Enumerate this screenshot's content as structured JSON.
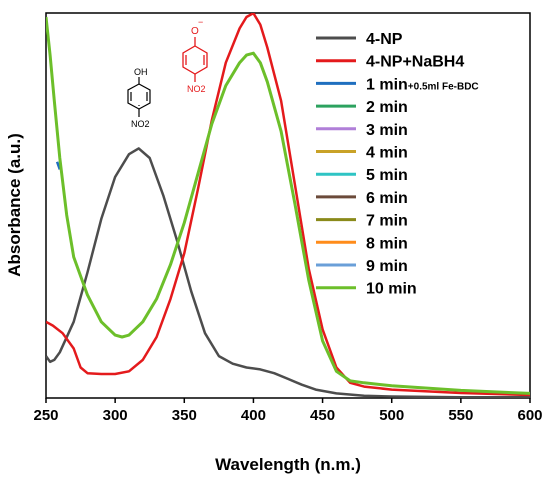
{
  "chart_data": {
    "type": "line",
    "xlabel": "Wavelength (n.m.)",
    "ylabel": "Absorbance (a.u.)",
    "xlim": [
      250,
      600
    ],
    "ylim": [
      0,
      1.0
    ],
    "x_ticks": [
      "250",
      "300",
      "350",
      "400",
      "450",
      "500",
      "550",
      "600"
    ],
    "y_tick_labels_shown": false,
    "grid": false,
    "legend_position": "top-right",
    "series": [
      {
        "name": "4-NP",
        "color": "#4d4d4d",
        "points": [
          [
            250,
            0.11
          ],
          [
            253,
            0.095
          ],
          [
            256,
            0.1
          ],
          [
            260,
            0.12
          ],
          [
            270,
            0.2
          ],
          [
            280,
            0.33
          ],
          [
            290,
            0.47
          ],
          [
            300,
            0.58
          ],
          [
            310,
            0.64
          ],
          [
            317,
            0.655
          ],
          [
            325,
            0.63
          ],
          [
            335,
            0.53
          ],
          [
            345,
            0.41
          ],
          [
            355,
            0.28
          ],
          [
            365,
            0.17
          ],
          [
            375,
            0.11
          ],
          [
            385,
            0.09
          ],
          [
            395,
            0.08
          ],
          [
            405,
            0.075
          ],
          [
            415,
            0.065
          ],
          [
            425,
            0.05
          ],
          [
            435,
            0.035
          ],
          [
            445,
            0.022
          ],
          [
            460,
            0.012
          ],
          [
            480,
            0.006
          ],
          [
            500,
            0.004
          ],
          [
            550,
            0.002
          ],
          [
            600,
            0.002
          ]
        ]
      },
      {
        "name": "4-NP+NaBH4",
        "color": "#e41a1c",
        "points": [
          [
            250,
            0.2
          ],
          [
            255,
            0.19
          ],
          [
            262,
            0.17
          ],
          [
            270,
            0.13
          ],
          [
            275,
            0.08
          ],
          [
            280,
            0.065
          ],
          [
            290,
            0.063
          ],
          [
            300,
            0.063
          ],
          [
            310,
            0.07
          ],
          [
            320,
            0.1
          ],
          [
            330,
            0.16
          ],
          [
            340,
            0.26
          ],
          [
            350,
            0.38
          ],
          [
            360,
            0.55
          ],
          [
            370,
            0.73
          ],
          [
            380,
            0.88
          ],
          [
            390,
            0.97
          ],
          [
            395,
            1.0
          ],
          [
            400,
            1.01
          ],
          [
            405,
            0.98
          ],
          [
            410,
            0.92
          ],
          [
            420,
            0.78
          ],
          [
            430,
            0.56
          ],
          [
            440,
            0.34
          ],
          [
            450,
            0.18
          ],
          [
            460,
            0.08
          ],
          [
            470,
            0.04
          ],
          [
            480,
            0.03
          ],
          [
            500,
            0.022
          ],
          [
            550,
            0.013
          ],
          [
            600,
            0.008
          ]
        ]
      },
      {
        "name": "1 min",
        "name_suffix": "+0.5ml Fe-BDC",
        "color": "#1f6fbf",
        "points": [
          [
            258,
            0.62
          ],
          [
            260,
            0.6
          ]
        ]
      },
      {
        "name": " 2 min",
        "color": "#2ca25f",
        "points": []
      },
      {
        "name": " 3 min",
        "color": "#b07fd8",
        "points": []
      },
      {
        "name": " 4 min",
        "color": "#c9a227",
        "points": []
      },
      {
        "name": " 5 min",
        "color": "#2ec4c4",
        "points": []
      },
      {
        "name": " 6 min",
        "color": "#6b4a3a",
        "points": []
      },
      {
        "name": " 7 min",
        "color": "#8a8a1a",
        "points": []
      },
      {
        "name": " 8 min",
        "color": "#ff8c1a",
        "points": []
      },
      {
        "name": " 9 min",
        "color": "#6a9fd8",
        "points": []
      },
      {
        "name": " 10 min",
        "color": "#6cbf2a",
        "points": [
          [
            250,
            1.0
          ],
          [
            253,
            0.9
          ],
          [
            256,
            0.78
          ],
          [
            260,
            0.63
          ],
          [
            265,
            0.48
          ],
          [
            270,
            0.37
          ],
          [
            280,
            0.27
          ],
          [
            290,
            0.2
          ],
          [
            300,
            0.165
          ],
          [
            305,
            0.16
          ],
          [
            310,
            0.165
          ],
          [
            320,
            0.2
          ],
          [
            330,
            0.26
          ],
          [
            340,
            0.35
          ],
          [
            350,
            0.46
          ],
          [
            360,
            0.59
          ],
          [
            370,
            0.72
          ],
          [
            380,
            0.82
          ],
          [
            390,
            0.88
          ],
          [
            395,
            0.9
          ],
          [
            400,
            0.905
          ],
          [
            405,
            0.88
          ],
          [
            410,
            0.83
          ],
          [
            420,
            0.7
          ],
          [
            430,
            0.51
          ],
          [
            440,
            0.31
          ],
          [
            450,
            0.15
          ],
          [
            460,
            0.07
          ],
          [
            470,
            0.045
          ],
          [
            480,
            0.04
          ],
          [
            500,
            0.032
          ],
          [
            550,
            0.02
          ],
          [
            600,
            0.012
          ]
        ]
      }
    ],
    "annotations": {
      "molecule_4np": {
        "top": "OH",
        "bottom": "NO2"
      },
      "molecule_4np_ion": {
        "top": "O",
        "charge": "−",
        "bottom": "NO2"
      }
    }
  }
}
